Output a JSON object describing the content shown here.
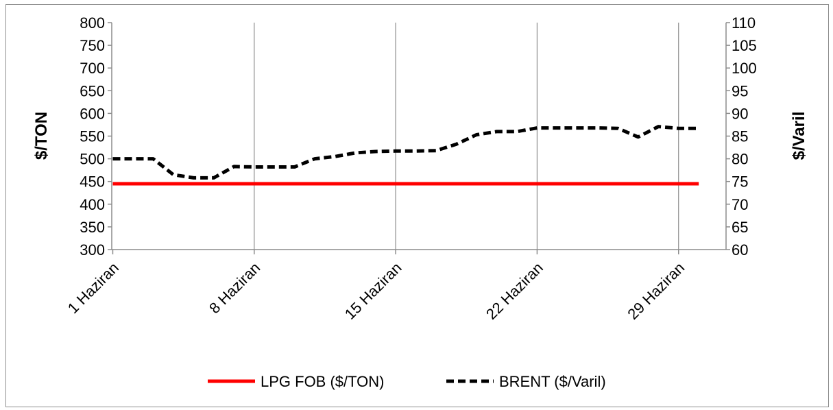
{
  "chart_data": {
    "type": "line",
    "y_left": {
      "label": "$/TON",
      "min": 300,
      "max": 800,
      "step": 50,
      "ticks": [
        "800",
        "750",
        "700",
        "650",
        "600",
        "550",
        "500",
        "450",
        "400",
        "350",
        "300"
      ]
    },
    "y_right": {
      "label": "$/Varil",
      "min": 60,
      "max": 110,
      "step": 5,
      "ticks": [
        "110",
        "105",
        "100",
        "95",
        "90",
        "85",
        "80",
        "75",
        "70",
        "65",
        "60"
      ]
    },
    "x": {
      "days": [
        1,
        2,
        3,
        4,
        5,
        6,
        7,
        8,
        9,
        10,
        11,
        12,
        13,
        14,
        15,
        16,
        17,
        18,
        19,
        20,
        21,
        22,
        23,
        24,
        25,
        26,
        27,
        28,
        29,
        30
      ],
      "tick_labels": [
        {
          "day": 1,
          "label": "1 Haziran"
        },
        {
          "day": 8,
          "label": "8 Haziran"
        },
        {
          "day": 15,
          "label": "15 Haziran"
        },
        {
          "day": 22,
          "label": "22 Haziran"
        },
        {
          "day": 29,
          "label": "29 Haziran"
        }
      ]
    },
    "series": [
      {
        "name": "LPG FOB ($/TON)",
        "axis": "left",
        "color": "#ff0000",
        "style": "solid",
        "values": [
          445,
          445,
          445,
          445,
          445,
          445,
          445,
          445,
          445,
          445,
          445,
          445,
          445,
          445,
          445,
          445,
          445,
          445,
          445,
          445,
          445,
          445,
          445,
          445,
          445,
          445,
          445,
          445,
          445,
          445
        ]
      },
      {
        "name": "BRENT ($/Varil)",
        "axis": "right",
        "color": "#000000",
        "style": "dashed",
        "values": [
          80,
          80,
          80,
          76.5,
          75.8,
          75.8,
          78.3,
          78.2,
          78.2,
          78.2,
          80,
          80.5,
          81.3,
          81.6,
          81.7,
          81.7,
          81.8,
          83.2,
          85.3,
          86,
          86,
          86.8,
          86.8,
          86.8,
          86.8,
          86.7,
          84.8,
          87.1,
          86.7,
          86.7
        ]
      }
    ],
    "legend_position": "bottom",
    "grid": {
      "vertical": true,
      "horizontal": false
    }
  }
}
